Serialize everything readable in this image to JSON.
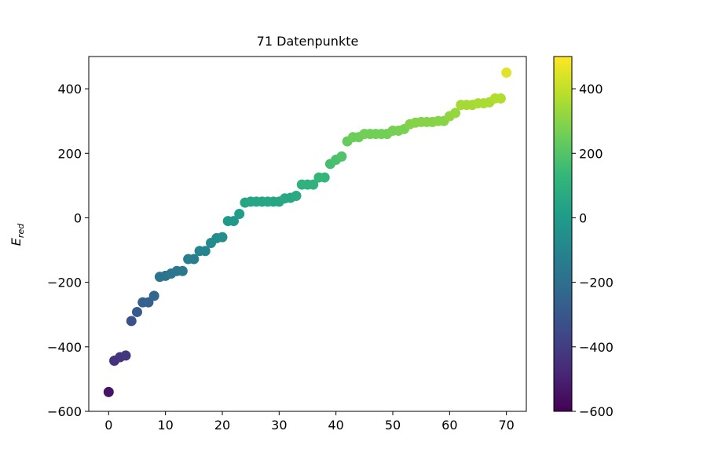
{
  "chart_data": {
    "type": "scatter",
    "title": "71 Datenpunkte",
    "xlabel": "",
    "ylabel_main": "E",
    "ylabel_sub": "red",
    "xlim": [
      -3.5,
      73.5
    ],
    "ylim": [
      -600,
      500
    ],
    "xticks": [
      0,
      10,
      20,
      30,
      40,
      50,
      60,
      70
    ],
    "yticks": [
      -600,
      -400,
      -200,
      0,
      200,
      400
    ],
    "grid": false,
    "legend": "none",
    "colormap": "viridis",
    "colorbar": {
      "range": [
        -600,
        500
      ],
      "ticks": [
        -600,
        -400,
        -200,
        0,
        200,
        400
      ],
      "stops": [
        "#440154",
        "#482878",
        "#3e4989",
        "#31688e",
        "#26828e",
        "#1f9e89",
        "#35b779",
        "#6ece58",
        "#b5de2b",
        "#fde725"
      ]
    },
    "x": [
      0,
      1,
      2,
      3,
      4,
      5,
      6,
      7,
      8,
      9,
      10,
      11,
      12,
      13,
      14,
      15,
      16,
      17,
      18,
      19,
      20,
      21,
      22,
      23,
      24,
      25,
      26,
      27,
      28,
      29,
      30,
      31,
      32,
      33,
      34,
      35,
      36,
      37,
      38,
      39,
      40,
      41,
      42,
      43,
      44,
      45,
      46,
      47,
      48,
      49,
      50,
      51,
      52,
      53,
      54,
      55,
      56,
      57,
      58,
      59,
      60,
      61,
      62,
      63,
      64,
      65,
      66,
      67,
      68,
      69,
      70
    ],
    "y": [
      -540,
      -443,
      -432,
      -427,
      -320,
      -292,
      -262,
      -262,
      -242,
      -183,
      -180,
      -173,
      -165,
      -165,
      -128,
      -128,
      -103,
      -103,
      -78,
      -63,
      -60,
      -10,
      -10,
      12,
      47,
      50,
      50,
      50,
      50,
      50,
      50,
      60,
      62,
      68,
      103,
      103,
      103,
      125,
      125,
      167,
      180,
      190,
      237,
      250,
      250,
      260,
      260,
      260,
      260,
      260,
      270,
      270,
      275,
      290,
      295,
      297,
      297,
      297,
      300,
      300,
      315,
      325,
      350,
      350,
      350,
      355,
      355,
      358,
      370,
      370,
      450
    ]
  }
}
